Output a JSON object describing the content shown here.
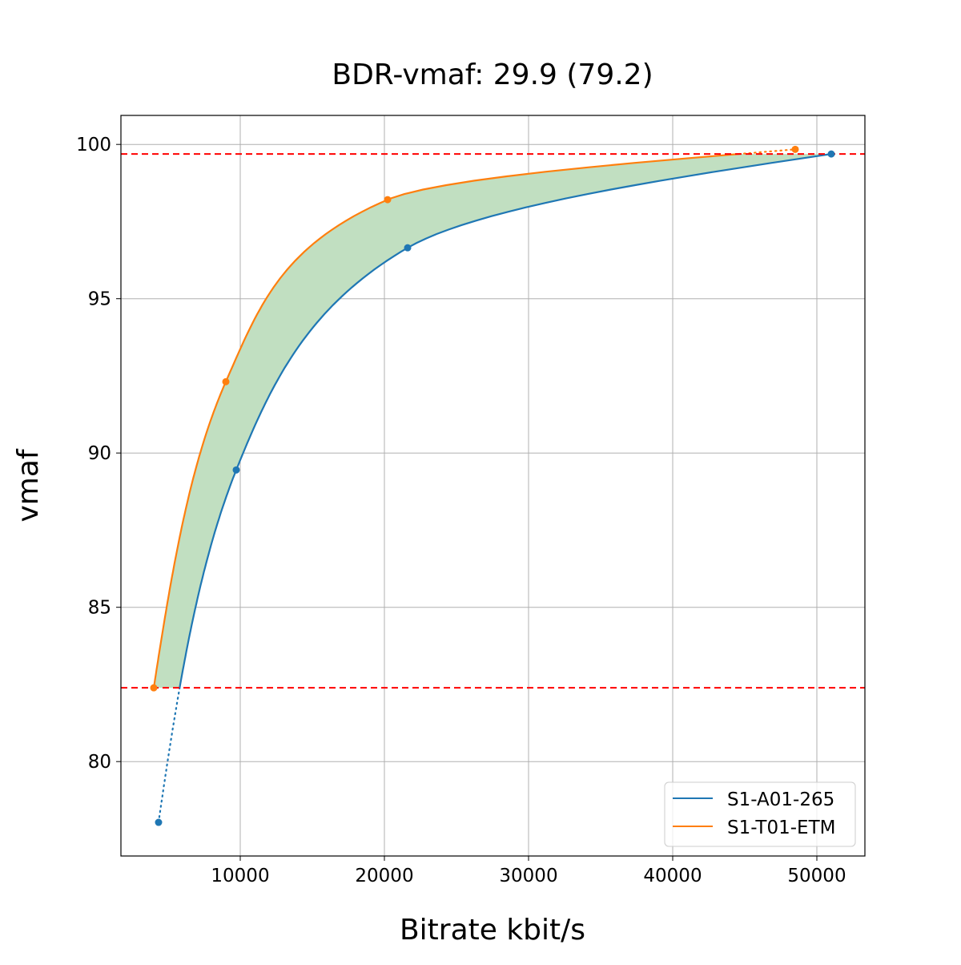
{
  "chart_data": {
    "type": "line",
    "title": "BDR-vmaf: 29.9 (79.2)",
    "xlabel": "Bitrate kbit/s",
    "ylabel": "vmaf",
    "xlim": [
      1722,
      53333
    ],
    "ylim": [
      76.94,
      100.94
    ],
    "xticks": [
      10000,
      20000,
      30000,
      40000,
      50000
    ],
    "yticks": [
      80,
      85,
      90,
      95,
      100
    ],
    "grid": true,
    "legend_position": "bottom-right",
    "series": [
      {
        "name": "S1-A01-265",
        "color": "#1f77b4",
        "x": [
          4333,
          9722,
          21611,
          51000
        ],
        "y": [
          78.03,
          89.45,
          96.65,
          99.69
        ]
      },
      {
        "name": "S1-T01-ETM",
        "color": "#ff7f0e",
        "x": [
          4000,
          9000,
          20222,
          48500
        ],
        "y": [
          82.39,
          92.31,
          98.21,
          99.84
        ]
      }
    ],
    "reference_lines": [
      {
        "y": 82.39,
        "color": "#ff0000"
      },
      {
        "y": 99.69,
        "color": "#ff0000"
      }
    ],
    "fill_color": "#c1dfc1"
  }
}
